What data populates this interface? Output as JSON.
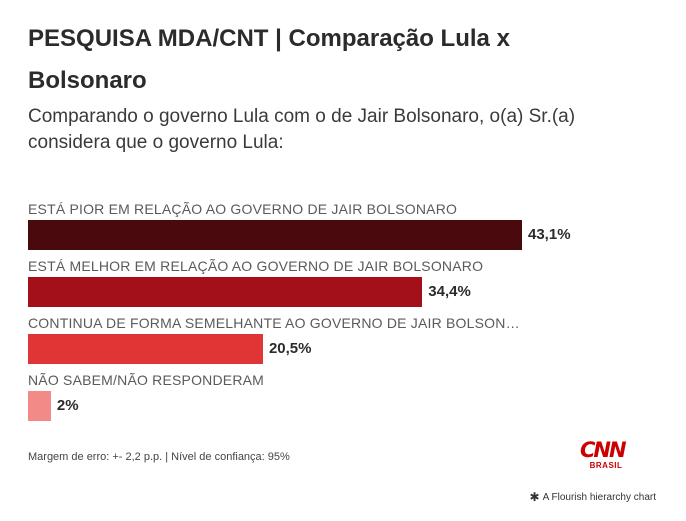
{
  "header": {
    "title": "PESQUISA MDA/CNT | Comparação Lula x Bolsonaro",
    "subtitle": "Comparando o governo Lula com o de Jair Bolsonaro, o(a) Sr.(a) considera que o governo Lula:"
  },
  "chart_data": {
    "type": "bar",
    "orientation": "horizontal",
    "categories": [
      "ESTÁ PIOR EM RELAÇÃO AO GOVERNO DE JAIR BOLSONARO",
      "ESTÁ MELHOR EM RELAÇÃO AO GOVERNO DE JAIR BOLSONARO",
      "CONTINUA DE FORMA SEMELHANTE AO GOVERNO DE JAIR BOLSONARO",
      "NÃO SABEM/NÃO RESPONDERAM"
    ],
    "values": [
      43.1,
      34.4,
      20.5,
      2
    ],
    "value_labels": [
      "43,1%",
      "34,4%",
      "20,5%",
      "2%"
    ],
    "colors": [
      "#4a0a0d",
      "#a3101a",
      "#e03535",
      "#f28b87"
    ],
    "xlim": [
      0,
      43.1
    ],
    "title": "PESQUISA MDA/CNT | Comparação Lula x Bolsonaro",
    "xlabel": "",
    "ylabel": ""
  },
  "footer": {
    "note": "Margem de erro: +- 2,2 p.p. | Nível de confiança: 95%",
    "logo_text": "CNN",
    "logo_sub": "BRASIL",
    "credit": "A Flourish hierarchy chart",
    "credit_icon": "flourish-icon",
    "brand_color": "#cc0000"
  }
}
